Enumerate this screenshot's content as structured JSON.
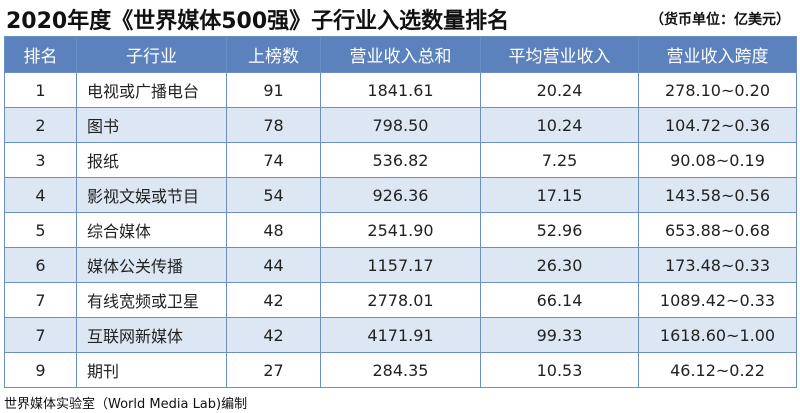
{
  "header": {
    "title": "2020年度《世界媒体500强》子行业入选数量排名",
    "unit": "（货币单位：亿美元）"
  },
  "table": {
    "columns": [
      "排名",
      "子行业",
      "上榜数",
      "营业收入总和",
      "平均营业收入",
      "营业收入跨度"
    ],
    "rows": [
      [
        "1",
        "电视或广播电台",
        "91",
        "1841.61",
        "20.24",
        "278.10~0.20"
      ],
      [
        "2",
        "图书",
        "78",
        "798.50",
        "10.24",
        "104.72~0.36"
      ],
      [
        "3",
        "报纸",
        "74",
        "536.82",
        "7.25",
        "90.08~0.19"
      ],
      [
        "4",
        "影视文娱或节目",
        "54",
        "926.36",
        "17.15",
        "143.58~0.56"
      ],
      [
        "5",
        "综合媒体",
        "48",
        "2541.90",
        "52.96",
        "653.88~0.68"
      ],
      [
        "6",
        "媒体公关传播",
        "44",
        "1157.17",
        "26.30",
        "173.48~0.33"
      ],
      [
        "7",
        "有线宽频或卫星",
        "42",
        "2778.01",
        "66.14",
        "1089.42~0.33"
      ],
      [
        "7",
        "互联网新媒体",
        "42",
        "4171.91",
        "99.33",
        "1618.60~1.00"
      ],
      [
        "9",
        "期刊",
        "27",
        "284.35",
        "10.53",
        "46.12~0.22"
      ]
    ]
  },
  "footer": {
    "source": "世界媒体实验室（World Media Lab)编制"
  }
}
